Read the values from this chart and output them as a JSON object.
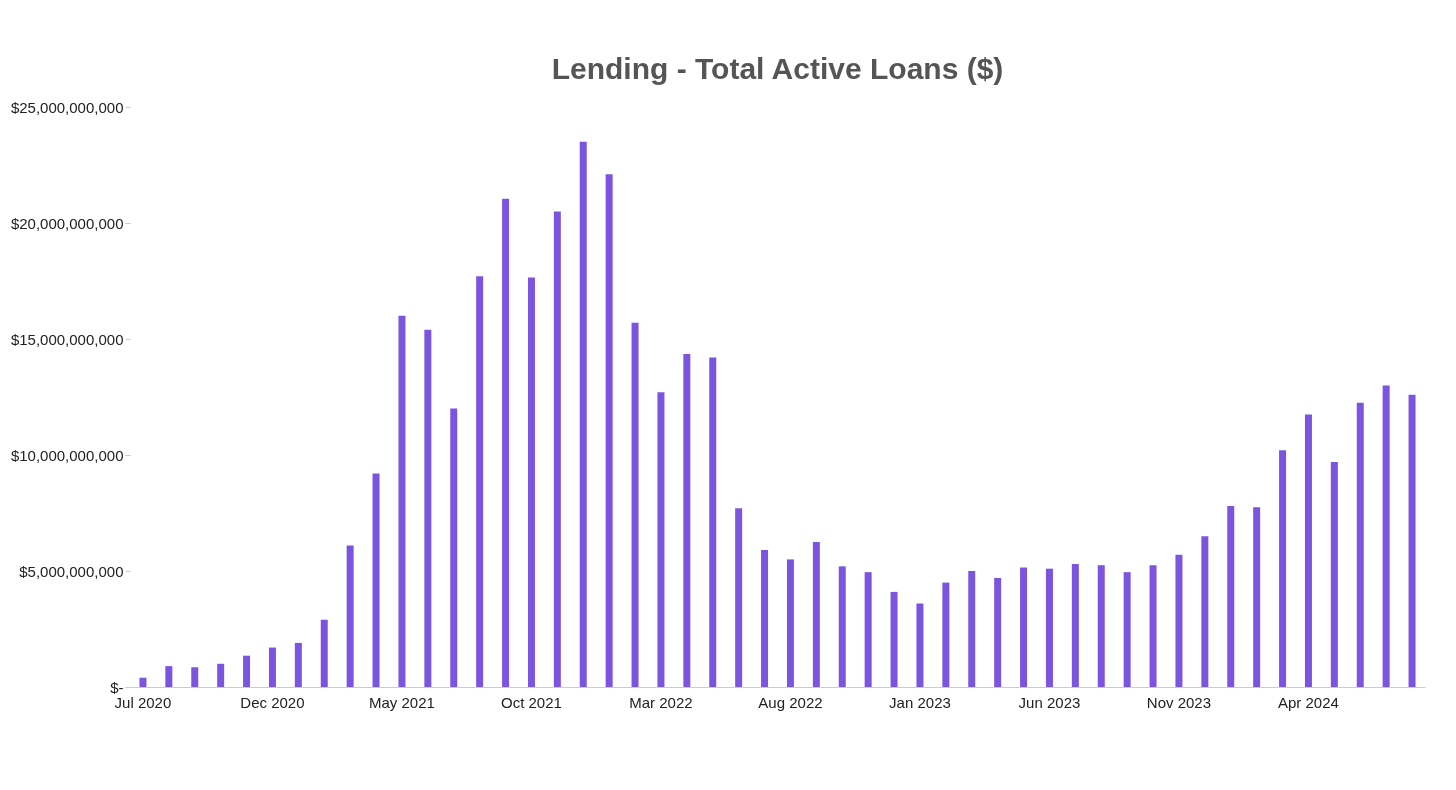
{
  "chart_data": {
    "type": "bar",
    "title": "Lending - Total Active Loans  ($)",
    "categories": [
      "Jul 2020",
      null,
      null,
      null,
      null,
      "Dec 2020",
      null,
      null,
      null,
      null,
      "May 2021",
      null,
      null,
      null,
      null,
      "Oct 2021",
      null,
      null,
      null,
      null,
      "Mar 2022",
      null,
      null,
      null,
      null,
      "Aug 2022",
      null,
      null,
      null,
      null,
      "Jan 2023",
      null,
      null,
      null,
      null,
      "Jun 2023",
      null,
      null,
      null,
      null,
      "Nov 2023",
      null,
      null,
      null,
      null,
      "Apr 2024",
      null,
      null,
      null,
      null
    ],
    "values": [
      400000000,
      900000000,
      850000000,
      1000000000,
      1350000000,
      1700000000,
      1900000000,
      2900000000,
      6100000000,
      9200000000,
      16000000000,
      15400000000,
      12000000000,
      17700000000,
      21050000000,
      17650000000,
      20500000000,
      23500000000,
      22100000000,
      15700000000,
      12700000000,
      14350000000,
      14200000000,
      7700000000,
      5900000000,
      5500000000,
      6250000000,
      5200000000,
      4950000000,
      4100000000,
      3600000000,
      4500000000,
      5000000000,
      4700000000,
      5150000000,
      5100000000,
      5300000000,
      5250000000,
      4950000000,
      5250000000,
      5700000000,
      6500000000,
      7800000000,
      7750000000,
      10200000000,
      11750000000,
      9700000000,
      12250000000,
      13000000000,
      12600000000
    ],
    "color": "#7b55e0",
    "ylim": [
      0,
      25000000000
    ],
    "yticks": [
      {
        "value": 0,
        "label": "$-"
      },
      {
        "value": 5000000000,
        "label": "$5,000,000,000"
      },
      {
        "value": 10000000000,
        "label": "$10,000,000,000"
      },
      {
        "value": 15000000000,
        "label": "$15,000,000,000"
      },
      {
        "value": 20000000000,
        "label": "$20,000,000,000"
      },
      {
        "value": 25000000000,
        "label": "$25,000,000,000"
      }
    ],
    "grid": false
  }
}
